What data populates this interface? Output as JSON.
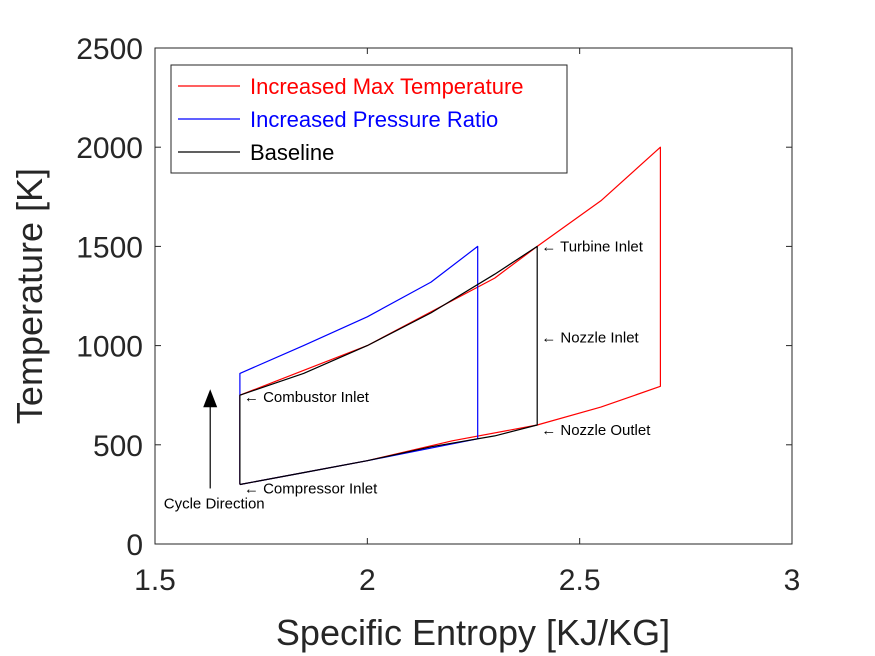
{
  "chart_data": {
    "type": "line",
    "xlabel": "Specific Entropy [KJ/KG]",
    "ylabel": "Temperature [K]",
    "xlim": [
      1.5,
      3
    ],
    "ylim": [
      0,
      2500
    ],
    "x_ticks": [
      1.5,
      2,
      2.5,
      3
    ],
    "x_tick_labels": [
      "1.5",
      "2",
      "2.5",
      "3"
    ],
    "y_ticks": [
      0,
      500,
      1000,
      1500,
      2000,
      2500
    ],
    "y_tick_labels": [
      "0",
      "500",
      "1000",
      "1500",
      "2000",
      "2500"
    ],
    "grid": false,
    "legend_position": "top-left",
    "series": [
      {
        "name": "Increased Max Temperature",
        "color": "#ff0000",
        "x": [
          1.7,
          1.7,
          2.0,
          2.3,
          2.4,
          2.55,
          2.69,
          2.69,
          2.55,
          2.4,
          2.2,
          2.0,
          1.7
        ],
        "y": [
          300,
          750,
          1000,
          1340,
          1500,
          1730,
          2000,
          795,
          690,
          600,
          520,
          420,
          300
        ]
      },
      {
        "name": "Increased Pressure Ratio",
        "color": "#0000ff",
        "x": [
          1.7,
          1.7,
          1.85,
          2.0,
          2.15,
          2.26,
          2.26,
          2.0,
          1.85,
          1.7
        ],
        "y": [
          300,
          860,
          1000,
          1145,
          1320,
          1500,
          530,
          420,
          360,
          300
        ]
      },
      {
        "name": "Baseline",
        "color": "#000000",
        "x": [
          1.7,
          1.7,
          1.85,
          2.0,
          2.15,
          2.3,
          2.4,
          2.4,
          2.3,
          2.15,
          2.0,
          1.85,
          1.7
        ],
        "y": [
          300,
          750,
          860,
          1000,
          1165,
          1360,
          1500,
          600,
          545,
          490,
          420,
          360,
          300
        ]
      }
    ],
    "annotations": [
      {
        "text": "← Turbine Inlet",
        "x": 2.4,
        "y": 1500
      },
      {
        "text": "← Nozzle Inlet",
        "x": 2.4,
        "y": 1040
      },
      {
        "text": "← Nozzle Outlet",
        "x": 2.4,
        "y": 575
      },
      {
        "text": "← Combustor Inlet",
        "x": 1.7,
        "y": 740
      },
      {
        "text": "← Compressor Inlet",
        "x": 1.7,
        "y": 280
      },
      {
        "text": "Cycle Direction",
        "x": 1.63,
        "y": 205
      }
    ],
    "cycle_arrow": {
      "x": 1.63,
      "y_start": 280,
      "y_end": 760
    }
  }
}
